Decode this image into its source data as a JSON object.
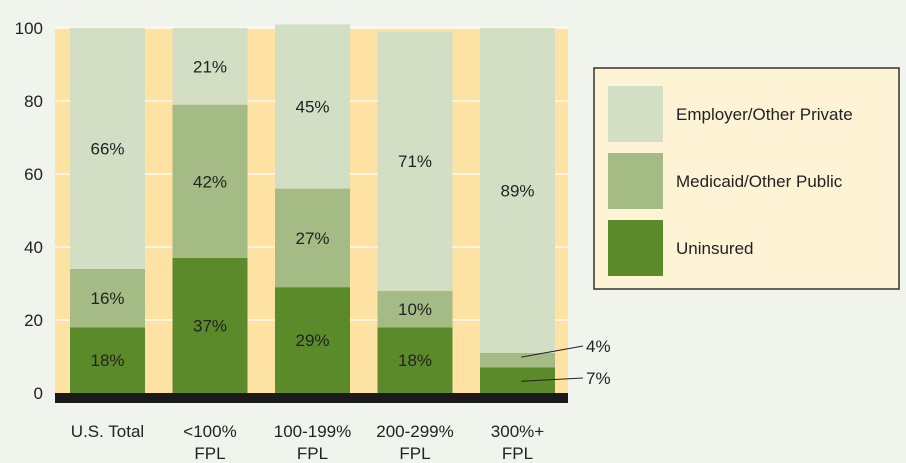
{
  "chart_data": {
    "type": "bar",
    "stacked": true,
    "ylim": [
      0,
      100
    ],
    "yticks": [
      "0",
      "20",
      "40",
      "60",
      "80",
      "100"
    ],
    "grid": true,
    "legend_position": "right",
    "categories": [
      [
        "U.S. Total"
      ],
      [
        "<100%",
        "FPL"
      ],
      [
        "100-199%",
        "FPL"
      ],
      [
        "200-299%",
        "FPL"
      ],
      [
        "300%+",
        "FPL"
      ]
    ],
    "series": [
      {
        "name": "Uninsured",
        "color": "#5b8a2a",
        "values": [
          18,
          37,
          29,
          18,
          7
        ],
        "labels": [
          "18%",
          "37%",
          "29%",
          "18%",
          "7%"
        ]
      },
      {
        "name": "Medicaid/Other Public",
        "color": "#a5bb85",
        "values": [
          16,
          42,
          27,
          10,
          4
        ],
        "labels": [
          "16%",
          "42%",
          "27%",
          "10%",
          "4%"
        ]
      },
      {
        "name": "Employer/Other Private",
        "color": "#d3dfc5",
        "values": [
          66,
          21,
          45,
          71,
          89
        ],
        "labels": [
          "66%",
          "21%",
          "45%",
          "71%",
          "89%"
        ]
      }
    ],
    "legend_order": [
      "Employer/Other Private",
      "Medicaid/Other Public",
      "Uninsured"
    ],
    "colors": {
      "plot_background": "#fde2a3",
      "page_background": "#f0f4ec",
      "legend_background": "#fef3d4",
      "baseline": "#1a1a1a"
    }
  }
}
